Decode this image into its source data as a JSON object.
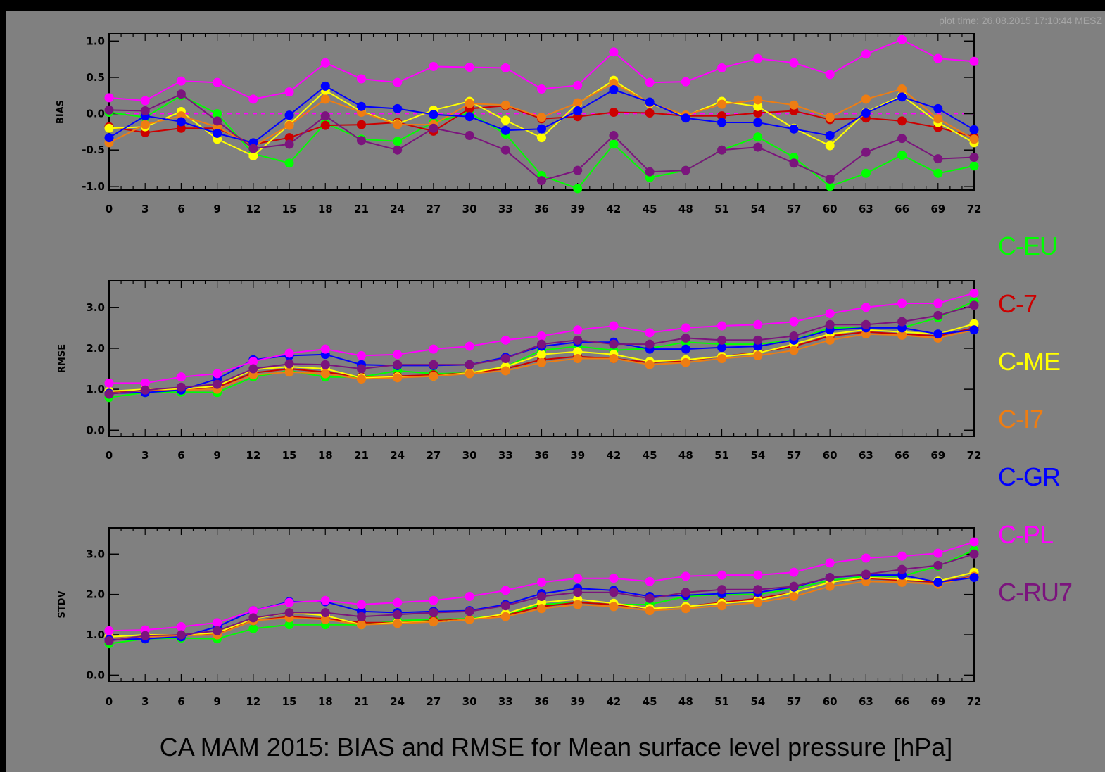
{
  "plot_time": "plot time: 26.08.2015 17:10:44 MESZ",
  "title": "CA MAM 2015: BIAS and RMSE for Mean surface level pressure [hPa]",
  "colors": {
    "background": "#808080",
    "C-EU": "#00ff00",
    "C-7": "#cc0000",
    "C-ME": "#ffff00",
    "C-I7": "#ee7d12",
    "C-GR": "#0000ff",
    "C-PL": "#ff00ff",
    "C-RU7": "#7b147d"
  },
  "legend": [
    "C-EU",
    "C-7",
    "C-ME",
    "C-I7",
    "C-GR",
    "C-PL",
    "C-RU7"
  ],
  "chart_data": [
    {
      "type": "line",
      "ylabel": "BIAS",
      "ylim": [
        -1.05,
        1.1
      ],
      "yticks": [
        "1.0",
        "0.5",
        "0.0",
        "-0.5",
        "-1.0"
      ],
      "ytick_values": [
        1.0,
        0.5,
        0.0,
        -0.5,
        -1.0
      ],
      "zero_line": true,
      "x": [
        0,
        3,
        6,
        9,
        12,
        15,
        18,
        21,
        24,
        27,
        30,
        33,
        36,
        39,
        42,
        45,
        48,
        51,
        54,
        57,
        60,
        63,
        66,
        69,
        72
      ],
      "xticks": [
        "0",
        "3",
        "6",
        "9",
        "12",
        "15",
        "18",
        "21",
        "24",
        "27",
        "30",
        "33",
        "36",
        "39",
        "42",
        "45",
        "48",
        "51",
        "54",
        "57",
        "60",
        "63",
        "66",
        "69",
        "72"
      ],
      "series": [
        {
          "name": "C-EU",
          "values": [
            0.02,
            -0.05,
            0.25,
            0.0,
            -0.55,
            -0.68,
            -0.13,
            -0.35,
            -0.38,
            -0.12,
            0.01,
            -0.28,
            -0.85,
            -1.03,
            -0.42,
            -0.88,
            -0.78,
            -0.5,
            -0.32,
            -0.6,
            -1.0,
            -0.82,
            -0.57,
            -0.82,
            -0.72
          ]
        },
        {
          "name": "C-7",
          "values": [
            -0.18,
            -0.26,
            -0.2,
            -0.2,
            -0.42,
            -0.33,
            -0.16,
            -0.15,
            -0.12,
            -0.24,
            0.07,
            0.11,
            -0.07,
            -0.04,
            0.02,
            0.01,
            -0.03,
            -0.03,
            0.01,
            0.04,
            -0.08,
            -0.06,
            -0.1,
            -0.19,
            -0.32
          ]
        },
        {
          "name": "C-ME",
          "values": [
            -0.2,
            -0.18,
            0.03,
            -0.35,
            -0.58,
            -0.15,
            0.32,
            0.03,
            -0.14,
            0.05,
            0.17,
            -0.09,
            -0.33,
            0.14,
            0.46,
            0.14,
            -0.03,
            0.17,
            0.1,
            -0.2,
            -0.44,
            0.02,
            0.25,
            -0.12,
            -0.4
          ]
        },
        {
          "name": "C-I7",
          "values": [
            -0.4,
            -0.15,
            -0.03,
            -0.18,
            -0.45,
            -0.16,
            0.2,
            0.02,
            -0.15,
            -0.15,
            0.14,
            0.12,
            -0.05,
            0.15,
            0.42,
            0.15,
            -0.02,
            0.13,
            0.19,
            0.12,
            -0.05,
            0.2,
            0.34,
            -0.07,
            -0.35
          ]
        },
        {
          "name": "C-GR",
          "values": [
            -0.33,
            -0.03,
            -0.11,
            -0.27,
            -0.4,
            -0.02,
            0.38,
            0.1,
            0.07,
            -0.01,
            -0.04,
            -0.23,
            -0.21,
            0.04,
            0.33,
            0.16,
            -0.06,
            -0.12,
            -0.12,
            -0.21,
            -0.3,
            0.01,
            0.23,
            0.07,
            -0.22
          ]
        },
        {
          "name": "C-PL",
          "values": [
            0.22,
            0.18,
            0.45,
            0.43,
            0.2,
            0.3,
            0.7,
            0.48,
            0.43,
            0.65,
            0.64,
            0.63,
            0.34,
            0.39,
            0.85,
            0.43,
            0.44,
            0.63,
            0.76,
            0.7,
            0.54,
            0.82,
            1.02,
            0.76,
            0.72
          ]
        },
        {
          "name": "C-RU7",
          "values": [
            0.05,
            0.04,
            0.27,
            -0.1,
            -0.48,
            -0.42,
            -0.03,
            -0.37,
            -0.5,
            -0.2,
            -0.3,
            -0.5,
            -0.92,
            -0.78,
            -0.3,
            -0.8,
            -0.78,
            -0.5,
            -0.46,
            -0.68,
            -0.9,
            -0.53,
            -0.34,
            -0.62,
            -0.6
          ]
        }
      ]
    },
    {
      "type": "line",
      "ylabel": "RMSE",
      "ylim": [
        -0.15,
        3.65
      ],
      "yticks": [
        "3.0",
        "2.0",
        "1.0",
        "0.0"
      ],
      "ytick_values": [
        3.0,
        2.0,
        1.0,
        0.0
      ],
      "zero_line": false,
      "x": [
        0,
        3,
        6,
        9,
        12,
        15,
        18,
        21,
        24,
        27,
        30,
        33,
        36,
        39,
        42,
        45,
        48,
        51,
        54,
        57,
        60,
        63,
        66,
        69,
        72
      ],
      "xticks": [
        "0",
        "3",
        "6",
        "9",
        "12",
        "15",
        "18",
        "21",
        "24",
        "27",
        "30",
        "33",
        "36",
        "39",
        "42",
        "45",
        "48",
        "51",
        "54",
        "57",
        "60",
        "63",
        "66",
        "69",
        "72"
      ],
      "series": [
        {
          "name": "C-EU",
          "values": [
            0.8,
            0.92,
            0.93,
            0.92,
            1.3,
            1.45,
            1.3,
            1.3,
            1.45,
            1.38,
            1.4,
            1.55,
            1.95,
            2.05,
            1.95,
            2.0,
            2.15,
            2.1,
            2.1,
            2.2,
            2.5,
            2.5,
            2.5,
            2.75,
            3.15
          ]
        },
        {
          "name": "C-7",
          "values": [
            0.92,
            0.95,
            1.0,
            1.05,
            1.4,
            1.5,
            1.42,
            1.3,
            1.32,
            1.35,
            1.4,
            1.5,
            1.72,
            1.8,
            1.75,
            1.65,
            1.7,
            1.8,
            1.9,
            2.05,
            2.3,
            2.4,
            2.35,
            2.3,
            2.5
          ]
        },
        {
          "name": "C-ME",
          "values": [
            0.95,
            1.0,
            1.0,
            1.08,
            1.48,
            1.55,
            1.5,
            1.28,
            1.3,
            1.32,
            1.4,
            1.55,
            1.85,
            1.92,
            1.85,
            1.68,
            1.72,
            1.8,
            1.88,
            2.1,
            2.35,
            2.45,
            2.4,
            2.35,
            2.6
          ]
        },
        {
          "name": "C-I7",
          "values": [
            0.9,
            0.95,
            0.98,
            1.0,
            1.35,
            1.42,
            1.38,
            1.25,
            1.28,
            1.32,
            1.38,
            1.45,
            1.65,
            1.75,
            1.75,
            1.6,
            1.65,
            1.75,
            1.82,
            1.95,
            2.2,
            2.35,
            2.32,
            2.25,
            2.45
          ]
        },
        {
          "name": "C-GR",
          "values": [
            0.9,
            0.92,
            0.98,
            1.25,
            1.72,
            1.82,
            1.85,
            1.6,
            1.58,
            1.58,
            1.6,
            1.78,
            2.05,
            2.15,
            2.15,
            1.98,
            1.98,
            2.02,
            2.05,
            2.2,
            2.45,
            2.5,
            2.5,
            2.35,
            2.45
          ]
        },
        {
          "name": "C-PL",
          "values": [
            1.15,
            1.15,
            1.3,
            1.38,
            1.68,
            1.88,
            1.98,
            1.82,
            1.85,
            1.98,
            2.05,
            2.2,
            2.3,
            2.45,
            2.55,
            2.38,
            2.5,
            2.55,
            2.58,
            2.65,
            2.85,
            3.0,
            3.1,
            3.1,
            3.35
          ]
        },
        {
          "name": "C-RU7",
          "values": [
            0.88,
            0.98,
            1.05,
            1.12,
            1.5,
            1.62,
            1.6,
            1.5,
            1.6,
            1.6,
            1.6,
            1.75,
            2.1,
            2.2,
            2.1,
            2.1,
            2.25,
            2.2,
            2.2,
            2.3,
            2.58,
            2.58,
            2.65,
            2.8,
            3.05
          ]
        }
      ]
    },
    {
      "type": "line",
      "ylabel": "STDV",
      "ylim": [
        -0.15,
        3.65
      ],
      "yticks": [
        "3.0",
        "2.0",
        "1.0",
        "0.0"
      ],
      "ytick_values": [
        3.0,
        2.0,
        1.0,
        0.0
      ],
      "zero_line": false,
      "x": [
        0,
        3,
        6,
        9,
        12,
        15,
        18,
        21,
        24,
        27,
        30,
        33,
        36,
        39,
        42,
        45,
        48,
        51,
        54,
        57,
        60,
        63,
        66,
        69,
        72
      ],
      "xticks": [
        "0",
        "3",
        "6",
        "9",
        "12",
        "15",
        "18",
        "21",
        "24",
        "27",
        "30",
        "33",
        "36",
        "39",
        "42",
        "45",
        "48",
        "51",
        "54",
        "57",
        "60",
        "63",
        "66",
        "69",
        "72"
      ],
      "series": [
        {
          "name": "C-EU",
          "values": [
            0.78,
            0.9,
            0.92,
            0.9,
            1.15,
            1.25,
            1.25,
            1.25,
            1.35,
            1.38,
            1.4,
            1.5,
            1.75,
            1.8,
            1.75,
            1.75,
            1.95,
            2.0,
            2.0,
            2.15,
            2.35,
            2.45,
            2.45,
            2.7,
            3.1
          ]
        },
        {
          "name": "C-7",
          "values": [
            0.9,
            0.95,
            0.98,
            1.02,
            1.35,
            1.45,
            1.4,
            1.3,
            1.3,
            1.35,
            1.38,
            1.48,
            1.7,
            1.8,
            1.75,
            1.65,
            1.7,
            1.8,
            1.9,
            2.05,
            2.3,
            2.4,
            2.35,
            2.3,
            2.45
          ]
        },
        {
          "name": "C-ME",
          "values": [
            0.95,
            1.0,
            1.0,
            1.05,
            1.4,
            1.55,
            1.48,
            1.25,
            1.3,
            1.32,
            1.38,
            1.52,
            1.8,
            1.88,
            1.78,
            1.65,
            1.7,
            1.78,
            1.85,
            2.05,
            2.3,
            2.42,
            2.38,
            2.33,
            2.55
          ]
        },
        {
          "name": "C-I7",
          "values": [
            0.9,
            0.95,
            0.98,
            1.0,
            1.35,
            1.42,
            1.38,
            1.25,
            1.28,
            1.32,
            1.38,
            1.45,
            1.65,
            1.75,
            1.7,
            1.6,
            1.65,
            1.72,
            1.8,
            1.95,
            2.2,
            2.32,
            2.3,
            2.25,
            2.45
          ]
        },
        {
          "name": "C-GR",
          "values": [
            0.88,
            0.9,
            0.95,
            1.2,
            1.6,
            1.82,
            1.82,
            1.58,
            1.55,
            1.58,
            1.6,
            1.75,
            2.02,
            2.15,
            2.1,
            1.95,
            1.98,
            2.02,
            2.05,
            2.18,
            2.42,
            2.48,
            2.48,
            2.3,
            2.42
          ]
        },
        {
          "name": "C-PL",
          "values": [
            1.1,
            1.12,
            1.2,
            1.3,
            1.6,
            1.8,
            1.85,
            1.75,
            1.8,
            1.85,
            1.95,
            2.1,
            2.3,
            2.4,
            2.4,
            2.32,
            2.45,
            2.48,
            2.48,
            2.55,
            2.78,
            2.9,
            2.95,
            3.02,
            3.3
          ]
        },
        {
          "name": "C-RU7",
          "values": [
            0.85,
            0.98,
            1.0,
            1.1,
            1.42,
            1.55,
            1.55,
            1.45,
            1.5,
            1.55,
            1.58,
            1.72,
            1.95,
            2.05,
            2.05,
            1.9,
            2.05,
            2.12,
            2.12,
            2.2,
            2.42,
            2.5,
            2.62,
            2.72,
            3.0
          ]
        }
      ]
    }
  ]
}
